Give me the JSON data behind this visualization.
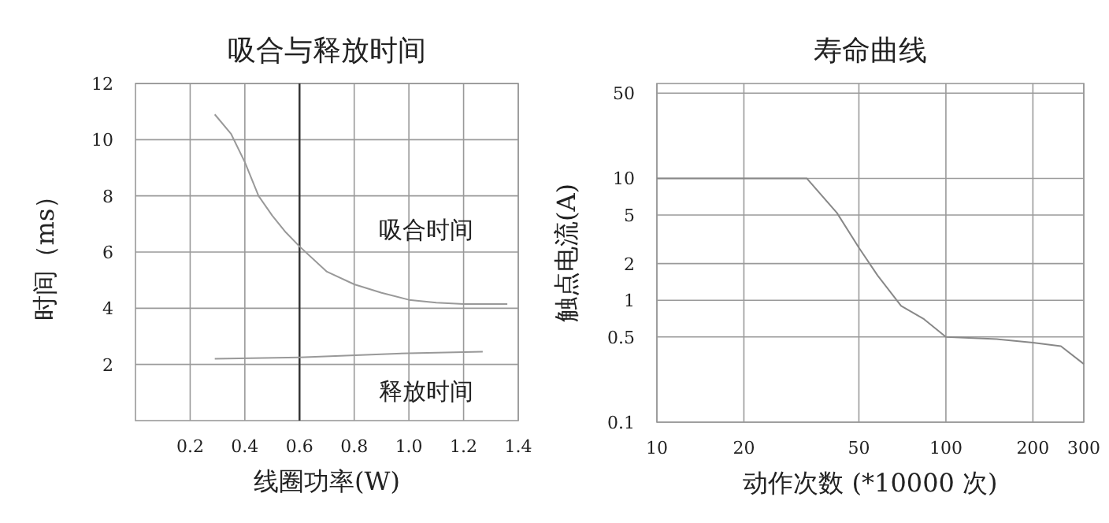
{
  "chart_data": [
    {
      "type": "line",
      "title": "吸合与释放时间",
      "xlabel": "线圈功率(W)",
      "ylabel": "时间（ms）",
      "xlim": [
        0,
        1.4
      ],
      "xticks": [
        0.2,
        0.4,
        0.6,
        0.8,
        {
          "value": 1.0,
          "label": "1.0"
        },
        1.2,
        1.4
      ],
      "ylim": [
        0,
        12
      ],
      "yticks": [
        2,
        4,
        6,
        8,
        10,
        12
      ],
      "grid": true,
      "marker": "none",
      "line_style": "solid",
      "ref_lines": [
        {
          "axis": "x",
          "value": 0.6,
          "color": "#333333"
        }
      ],
      "series": [
        {
          "name": "吸合时间",
          "color": "#999999",
          "x": [
            0.29,
            0.35,
            0.4,
            0.45,
            0.5,
            0.55,
            0.6,
            0.7,
            0.8,
            0.9,
            1.0,
            1.1,
            1.2,
            1.36
          ],
          "values": [
            10.9,
            10.2,
            9.2,
            8.0,
            7.3,
            6.7,
            6.2,
            5.3,
            4.85,
            4.55,
            4.3,
            4.2,
            4.15,
            4.15
          ]
        },
        {
          "name": "释放时间",
          "color": "#999999",
          "x": [
            0.29,
            0.6,
            1.0,
            1.27
          ],
          "values": [
            2.2,
            2.25,
            2.4,
            2.45
          ]
        }
      ]
    },
    {
      "type": "line",
      "title": "寿命曲线",
      "xlabel": "动作次数 (*10000 次)",
      "ylabel": "触点电流(A)",
      "log": "xy",
      "xlim": [
        10,
        300
      ],
      "xticks": [
        10,
        20,
        50,
        100,
        200,
        300
      ],
      "ylim": [
        0.1,
        60
      ],
      "yticks": [
        0.1,
        0.5,
        1,
        2,
        5,
        10,
        50
      ],
      "grid": true,
      "marker": "none",
      "line_style": "solid",
      "series": [
        {
          "color": "#888888",
          "x": [
            10,
            33,
            42,
            50,
            58,
            70,
            84,
            100,
            150,
            200,
            250,
            300
          ],
          "values": [
            10,
            10,
            5.2,
            2.7,
            1.6,
            0.9,
            0.7,
            0.5,
            0.48,
            0.45,
            0.42,
            0.3
          ]
        }
      ]
    }
  ]
}
